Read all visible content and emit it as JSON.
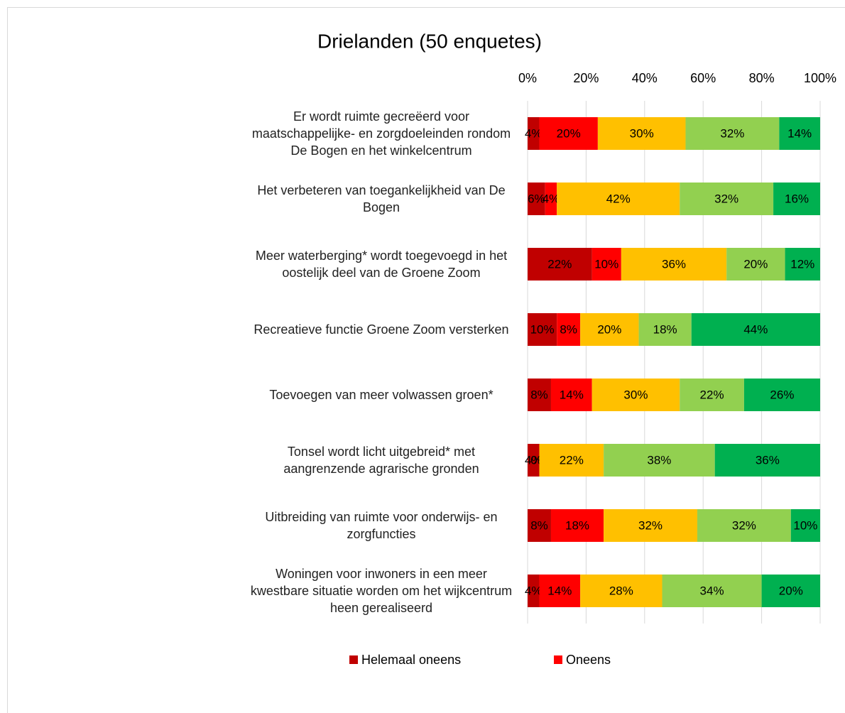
{
  "chart_data": {
    "type": "stacked-bar-horizontal",
    "title": "Drielanden (50 enquetes)",
    "categories": [
      "Er wordt ruimte gecreëerd voor maatschappelijke- en zorgdoeleinden rondom De Bogen en het winkelcentrum",
      "Het verbeteren van toegankelijkheid van De Bogen",
      "Meer waterberging* wordt toegevoegd in het oostelijk deel van de Groene Zoom",
      "Recreatieve functie Groene Zoom versterken",
      "Toevoegen van meer volwassen groen*",
      "Tonsel wordt licht uitgebreid* met aangrenzende agrarische gronden",
      "Uitbreiding van ruimte voor onderwijs- en zorgfuncties",
      "Woningen voor inwoners in een meer kwestbare situatie worden om het wijkcentrum heen gerealiseerd"
    ],
    "series": [
      {
        "name": "Helemaal oneens",
        "color": "#c00000",
        "values": [
          4,
          6,
          22,
          10,
          8,
          4,
          8,
          4
        ],
        "value_labels": [
          "4%",
          "6%",
          "22%",
          "10%",
          "8%",
          "4%",
          "8%",
          "4%"
        ]
      },
      {
        "name": "Oneens",
        "color": "#ff0000",
        "values": [
          20,
          4,
          10,
          8,
          14,
          0,
          18,
          14
        ],
        "value_labels": [
          "20%",
          "4%",
          "10%",
          "8%",
          "14%",
          "0%",
          "18%",
          "14%"
        ]
      },
      {
        "color": "#ffc000",
        "values": [
          30,
          42,
          36,
          20,
          30,
          22,
          32,
          28
        ],
        "value_labels": [
          "30%",
          "42%",
          "36%",
          "20%",
          "30%",
          "22%",
          "32%",
          "28%"
        ]
      },
      {
        "color": "#92d050",
        "values": [
          32,
          32,
          20,
          18,
          22,
          38,
          32,
          34
        ],
        "value_labels": [
          "32%",
          "32%",
          "20%",
          "18%",
          "22%",
          "38%",
          "32%",
          "34%"
        ]
      },
      {
        "color": "#00b050",
        "values": [
          14,
          16,
          12,
          44,
          26,
          36,
          10,
          20
        ],
        "value_labels": [
          "14%",
          "16%",
          "12%",
          "44%",
          "26%",
          "36%",
          "10%",
          "20%"
        ]
      }
    ],
    "xlim": [
      0,
      100
    ],
    "xticks": [
      {
        "value": 0,
        "label": "0%"
      },
      {
        "value": 20,
        "label": "20%"
      },
      {
        "value": 40,
        "label": "40%"
      },
      {
        "value": 60,
        "label": "60%"
      },
      {
        "value": 80,
        "label": "80%"
      },
      {
        "value": 100,
        "label": "100%"
      }
    ],
    "grid": true,
    "legend": "bottom"
  }
}
